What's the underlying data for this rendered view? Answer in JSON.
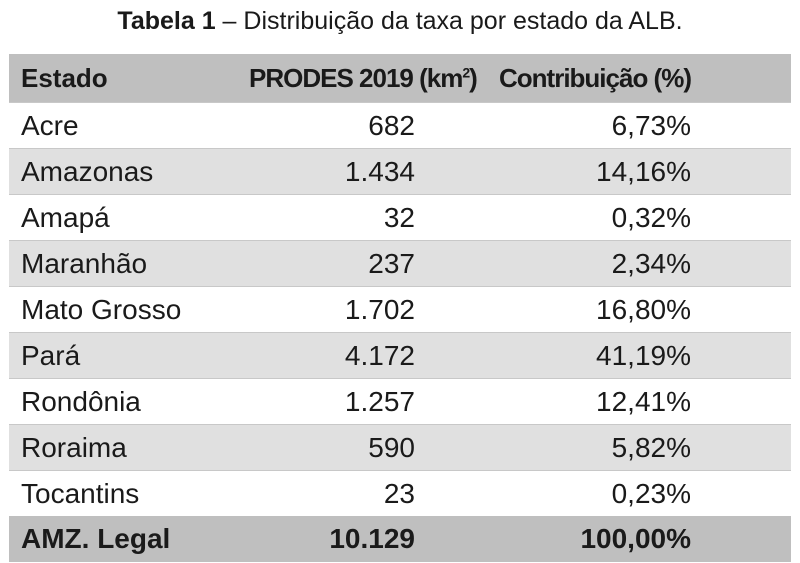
{
  "caption": {
    "label": "Tabela 1",
    "text": " – Distribuição da taxa por estado da ALB."
  },
  "table": {
    "headers": {
      "state": "Estado",
      "prodes": "PRODES 2019  (km",
      "prodes_sup": "2",
      "prodes_close": ")",
      "contrib": "Contribuição (%)"
    },
    "rows": [
      {
        "state": "Acre",
        "prodes": "682",
        "contrib": "6,73%"
      },
      {
        "state": "Amazonas",
        "prodes": "1.434",
        "contrib": "14,16%"
      },
      {
        "state": "Amapá",
        "prodes": "32",
        "contrib": "0,32%"
      },
      {
        "state": "Maranhão",
        "prodes": "237",
        "contrib": "2,34%"
      },
      {
        "state": "Mato Grosso",
        "prodes": "1.702",
        "contrib": "16,80%"
      },
      {
        "state": "Pará",
        "prodes": "4.172",
        "contrib": "41,19%"
      },
      {
        "state": "Rondônia",
        "prodes": "1.257",
        "contrib": "12,41%"
      },
      {
        "state": "Roraima",
        "prodes": "590",
        "contrib": "5,82%"
      },
      {
        "state": "Tocantins",
        "prodes": "23",
        "contrib": "0,23%"
      }
    ],
    "total": {
      "state": "AMZ. Legal",
      "prodes": "10.129",
      "contrib": "100,00%"
    }
  },
  "colors": {
    "header_bg": "#bfbfbf",
    "stripe_bg": "#e0e0e0",
    "text": "#1a1a1a"
  }
}
